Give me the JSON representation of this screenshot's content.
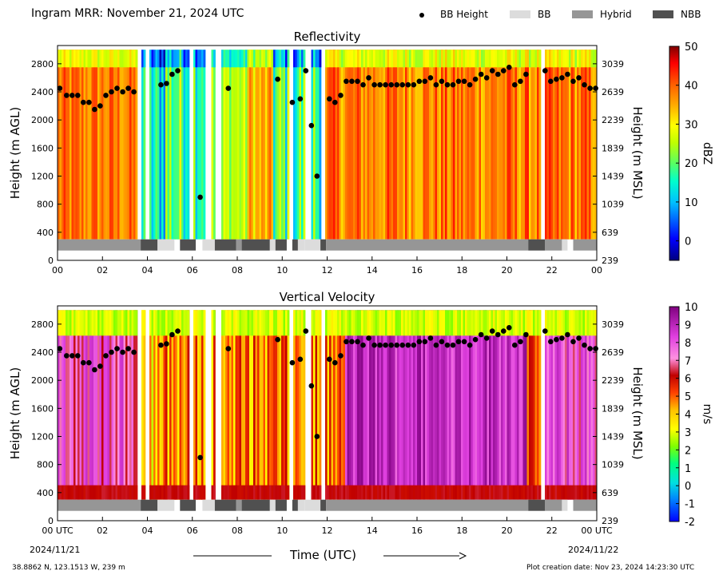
{
  "header": {
    "title": "Ingram MRR:  November 21, 2024 UTC",
    "legend": [
      {
        "label": "BB Height",
        "kind": "dot",
        "color": "#000000"
      },
      {
        "label": "BB",
        "kind": "swatch",
        "color": "#dcdcdc"
      },
      {
        "label": "Hybrid",
        "kind": "swatch",
        "color": "#969696"
      },
      {
        "label": "NBB",
        "kind": "swatch",
        "color": "#505050"
      }
    ]
  },
  "footer": {
    "location": "38.8862 N, 123.1513 W, 239 m",
    "created": "Plot creation date: Nov 23, 2024 14:23:30 UTC",
    "xlabel": "Time (UTC)",
    "start_date": "2024/11/21",
    "end_date": "2024/11/22"
  },
  "chart_data": [
    {
      "type": "heatmap",
      "title": "Reflectivity",
      "ylabel": "Height (m AGL)",
      "y2label": "Height (m MSL)",
      "xlim": [
        0,
        24
      ],
      "ylim": [
        0,
        3060
      ],
      "xticks": [
        "00",
        "02",
        "04",
        "06",
        "08",
        "10",
        "12",
        "14",
        "16",
        "18",
        "20",
        "22",
        "00"
      ],
      "yticks": [
        0,
        400,
        800,
        1200,
        1600,
        2000,
        2400,
        2800
      ],
      "y2ticks": [
        239,
        639,
        1039,
        1439,
        1839,
        2239,
        2639,
        3039
      ],
      "colorbar": {
        "label": "dBZ",
        "min": -5,
        "max": 50,
        "ticks": [
          0,
          10,
          20,
          30,
          40,
          50
        ]
      }
    },
    {
      "type": "heatmap",
      "title": "Vertical Velocity",
      "ylabel": "Height (m AGL)",
      "y2label": "Height (m MSL)",
      "xlim": [
        0,
        24
      ],
      "ylim": [
        0,
        3060
      ],
      "xticks": [
        "00 UTC",
        "02",
        "04",
        "06",
        "08",
        "10",
        "12",
        "14",
        "16",
        "18",
        "20",
        "22",
        "00 UTC"
      ],
      "yticks": [
        0,
        400,
        800,
        1200,
        1600,
        2000,
        2400,
        2800
      ],
      "y2ticks": [
        239,
        639,
        1039,
        1439,
        1839,
        2239,
        2639,
        3039
      ],
      "colorbar": {
        "label": "m/s",
        "min": -2,
        "max": 10,
        "ticks": [
          -2,
          -1,
          0,
          1,
          2,
          3,
          4,
          5,
          6,
          7,
          8,
          9,
          10
        ]
      }
    }
  ],
  "bb_height": {
    "times": [
      0.1,
      0.4,
      0.65,
      0.9,
      1.15,
      1.4,
      1.65,
      1.9,
      2.15,
      2.4,
      2.65,
      2.9,
      3.15,
      3.4,
      4.6,
      4.85,
      5.1,
      5.35,
      6.35,
      7.6,
      9.8,
      10.45,
      10.8,
      11.05,
      11.3,
      11.55,
      12.1,
      12.35,
      12.6,
      12.85,
      13.1,
      13.35,
      13.6,
      13.85,
      14.1,
      14.35,
      14.6,
      14.85,
      15.1,
      15.35,
      15.6,
      15.85,
      16.1,
      16.35,
      16.6,
      16.85,
      17.1,
      17.35,
      17.6,
      17.85,
      18.1,
      18.35,
      18.6,
      18.85,
      19.1,
      19.35,
      19.6,
      19.85,
      20.1,
      20.35,
      20.6,
      20.85,
      21.7,
      21.95,
      22.2,
      22.45,
      22.7,
      22.95,
      23.2,
      23.45,
      23.7,
      23.95
    ],
    "heights": [
      2450,
      2350,
      2350,
      2350,
      2250,
      2250,
      2150,
      2200,
      2350,
      2400,
      2450,
      2400,
      2450,
      2400,
      2500,
      2520,
      2650,
      2700,
      900,
      2450,
      2580,
      2250,
      2300,
      2700,
      1920,
      1200,
      2300,
      2250,
      2350,
      2550,
      2550,
      2550,
      2500,
      2600,
      2500,
      2500,
      2500,
      2500,
      2500,
      2500,
      2500,
      2500,
      2550,
      2550,
      2600,
      2500,
      2550,
      2500,
      2500,
      2550,
      2550,
      2500,
      2580,
      2650,
      2600,
      2700,
      2650,
      2700,
      2750,
      2500,
      2550,
      2650,
      2700,
      2550,
      2580,
      2600,
      2650,
      2550,
      2600,
      2500,
      2450,
      2450
    ]
  },
  "precip_type": [
    {
      "start": 0,
      "end": 3.7,
      "class": "Hybrid"
    },
    {
      "start": 3.7,
      "end": 4.45,
      "class": "NBB"
    },
    {
      "start": 4.45,
      "end": 5.2,
      "class": "BB"
    },
    {
      "start": 5.45,
      "end": 6.15,
      "class": "NBB"
    },
    {
      "start": 6.45,
      "end": 7.0,
      "class": "BB"
    },
    {
      "start": 7.0,
      "end": 7.95,
      "class": "NBB"
    },
    {
      "start": 7.95,
      "end": 8.2,
      "class": "Hybrid"
    },
    {
      "start": 8.2,
      "end": 9.45,
      "class": "NBB"
    },
    {
      "start": 9.45,
      "end": 9.7,
      "class": "BB"
    },
    {
      "start": 9.7,
      "end": 10.2,
      "class": "NBB"
    },
    {
      "start": 10.45,
      "end": 10.7,
      "class": "NBB"
    },
    {
      "start": 10.7,
      "end": 11.0,
      "class": "BB"
    },
    {
      "start": 11.0,
      "end": 11.7,
      "class": "BB"
    },
    {
      "start": 11.7,
      "end": 11.95,
      "class": "NBB"
    },
    {
      "start": 11.95,
      "end": 20.95,
      "class": "Hybrid"
    },
    {
      "start": 20.95,
      "end": 21.7,
      "class": "NBB"
    },
    {
      "start": 21.7,
      "end": 22.45,
      "class": "Hybrid"
    },
    {
      "start": 22.45,
      "end": 22.7,
      "class": "BB"
    },
    {
      "start": 22.95,
      "end": 24.0,
      "class": "Hybrid"
    }
  ],
  "colors": {
    "bb": "#dcdcdc",
    "hybrid": "#969696",
    "nbb": "#505050"
  }
}
